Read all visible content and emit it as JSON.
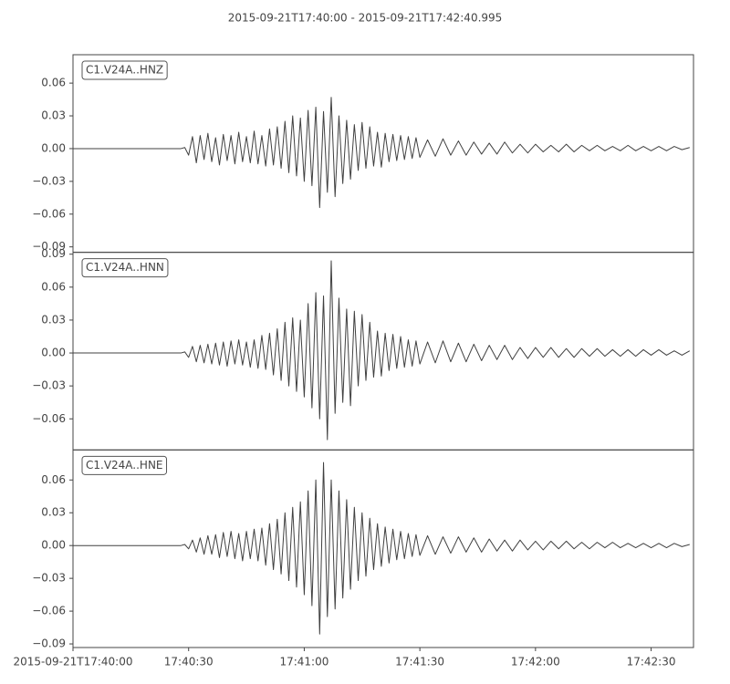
{
  "title": "2015-09-21T17:40:00  -  2015-09-21T17:42:40.995",
  "chart_data": [
    {
      "type": "line",
      "label": "C1.V24A..HNZ",
      "color": "#404040",
      "xlim": [
        0,
        160.995
      ],
      "ylim": [
        -0.095,
        0.086
      ],
      "yticks": [
        0.06,
        0.03,
        {
          "value": 0,
          "label": "0.00"
        },
        {
          "value": -0.03,
          "label": "−0.03"
        },
        {
          "value": -0.06,
          "label": "−0.06"
        },
        {
          "value": -0.09,
          "label": "−0.09"
        }
      ],
      "x": [
        0,
        28,
        29,
        30,
        31,
        32,
        33,
        34,
        35,
        36,
        37,
        38,
        39,
        40,
        41,
        42,
        43,
        44,
        45,
        46,
        47,
        48,
        49,
        50,
        51,
        52,
        53,
        54,
        55,
        56,
        57,
        58,
        59,
        60,
        61,
        62,
        63,
        64,
        65,
        66,
        67,
        68,
        69,
        70,
        71,
        72,
        73,
        74,
        75,
        76,
        77,
        78,
        79,
        80,
        81,
        82,
        83,
        84,
        85,
        86,
        87,
        88,
        89,
        90,
        92,
        94,
        96,
        98,
        100,
        102,
        104,
        106,
        108,
        110,
        112,
        114,
        116,
        118,
        120,
        122,
        124,
        126,
        128,
        130,
        132,
        134,
        136,
        138,
        140,
        142,
        144,
        146,
        148,
        150,
        152,
        154,
        156,
        158,
        160
      ],
      "values": [
        0,
        0,
        0.001,
        -0.006,
        0.011,
        -0.013,
        0.012,
        -0.01,
        0.014,
        -0.012,
        0.01,
        -0.015,
        0.013,
        -0.011,
        0.012,
        -0.014,
        0.015,
        -0.012,
        0.011,
        -0.013,
        0.016,
        -0.014,
        0.012,
        -0.016,
        0.018,
        -0.015,
        0.02,
        -0.018,
        0.025,
        -0.022,
        0.03,
        -0.025,
        0.028,
        -0.03,
        0.035,
        -0.034,
        0.038,
        -0.054,
        0.034,
        -0.04,
        0.047,
        -0.044,
        0.03,
        -0.032,
        0.026,
        -0.028,
        0.022,
        -0.02,
        0.024,
        -0.018,
        0.02,
        -0.016,
        0.015,
        -0.017,
        0.014,
        -0.012,
        0.013,
        -0.011,
        0.012,
        -0.01,
        0.011,
        -0.009,
        0.01,
        -0.008,
        0.008,
        -0.007,
        0.009,
        -0.006,
        0.007,
        -0.006,
        0.006,
        -0.005,
        0.005,
        -0.005,
        0.006,
        -0.004,
        0.004,
        -0.004,
        0.004,
        -0.003,
        0.003,
        -0.003,
        0.004,
        -0.003,
        0.003,
        -0.002,
        0.003,
        -0.002,
        0.002,
        -0.002,
        0.003,
        -0.002,
        0.002,
        -0.002,
        0.002,
        -0.002,
        0.002,
        -0.001,
        0.001
      ]
    },
    {
      "type": "line",
      "label": "C1.V24A..HNN",
      "color": "#404040",
      "xlim": [
        0,
        160.995
      ],
      "ylim": [
        -0.0883,
        0.0917
      ],
      "yticks": [
        0.09,
        0.06,
        0.03,
        {
          "value": 0,
          "label": "0.00"
        },
        {
          "value": -0.03,
          "label": "−0.03"
        },
        {
          "value": -0.06,
          "label": "−0.06"
        }
      ],
      "x": [
        0,
        28,
        29,
        30,
        31,
        32,
        33,
        34,
        35,
        36,
        37,
        38,
        39,
        40,
        41,
        42,
        43,
        44,
        45,
        46,
        47,
        48,
        49,
        50,
        51,
        52,
        53,
        54,
        55,
        56,
        57,
        58,
        59,
        60,
        61,
        62,
        63,
        64,
        65,
        66,
        67,
        68,
        69,
        70,
        71,
        72,
        73,
        74,
        75,
        76,
        77,
        78,
        79,
        80,
        81,
        82,
        83,
        84,
        85,
        86,
        87,
        88,
        89,
        90,
        92,
        94,
        96,
        98,
        100,
        102,
        104,
        106,
        108,
        110,
        112,
        114,
        116,
        118,
        120,
        122,
        124,
        126,
        128,
        130,
        132,
        134,
        136,
        138,
        140,
        142,
        144,
        146,
        148,
        150,
        152,
        154,
        156,
        158,
        160
      ],
      "values": [
        0,
        0,
        0.001,
        -0.004,
        0.006,
        -0.008,
        0.007,
        -0.009,
        0.008,
        -0.01,
        0.009,
        -0.011,
        0.01,
        -0.012,
        0.011,
        -0.01,
        0.012,
        -0.011,
        0.01,
        -0.013,
        0.012,
        -0.014,
        0.016,
        -0.015,
        0.018,
        -0.02,
        0.022,
        -0.025,
        0.028,
        -0.03,
        0.032,
        -0.035,
        0.03,
        -0.04,
        0.045,
        -0.05,
        0.055,
        -0.06,
        0.052,
        -0.079,
        0.084,
        -0.055,
        0.05,
        -0.045,
        0.04,
        -0.048,
        0.038,
        -0.03,
        0.035,
        -0.025,
        0.028,
        -0.022,
        0.02,
        -0.021,
        0.018,
        -0.016,
        0.017,
        -0.014,
        0.015,
        -0.013,
        0.012,
        -0.012,
        0.011,
        -0.01,
        0.01,
        -0.009,
        0.011,
        -0.008,
        0.009,
        -0.008,
        0.008,
        -0.007,
        0.007,
        -0.006,
        0.007,
        -0.006,
        0.005,
        -0.005,
        0.005,
        -0.004,
        0.005,
        -0.004,
        0.004,
        -0.004,
        0.004,
        -0.003,
        0.004,
        -0.003,
        0.003,
        -0.003,
        0.003,
        -0.003,
        0.003,
        -0.002,
        0.003,
        -0.002,
        0.002,
        -0.002,
        0.002
      ]
    },
    {
      "type": "line",
      "label": "C1.V24A..HNE",
      "color": "#404040",
      "xlim": [
        0,
        160.995
      ],
      "ylim": [
        -0.0933,
        0.0875
      ],
      "yticks": [
        0.06,
        0.03,
        {
          "value": 0,
          "label": "0.00"
        },
        {
          "value": -0.03,
          "label": "−0.03"
        },
        {
          "value": -0.06,
          "label": "−0.06"
        },
        {
          "value": -0.09,
          "label": "−0.09"
        }
      ],
      "xticks": [
        {
          "value": 0,
          "label": "2015-09-21T17:40:00"
        },
        {
          "value": 30,
          "label": "17:40:30"
        },
        {
          "value": 60,
          "label": "17:41:00"
        },
        {
          "value": 90,
          "label": "17:41:30"
        },
        {
          "value": 120,
          "label": "17:42:00"
        },
        {
          "value": 150,
          "label": "17:42:30"
        }
      ],
      "x": [
        0,
        28,
        29,
        30,
        31,
        32,
        33,
        34,
        35,
        36,
        37,
        38,
        39,
        40,
        41,
        42,
        43,
        44,
        45,
        46,
        47,
        48,
        49,
        50,
        51,
        52,
        53,
        54,
        55,
        56,
        57,
        58,
        59,
        60,
        61,
        62,
        63,
        64,
        65,
        66,
        67,
        68,
        69,
        70,
        71,
        72,
        73,
        74,
        75,
        76,
        77,
        78,
        79,
        80,
        81,
        82,
        83,
        84,
        85,
        86,
        87,
        88,
        89,
        90,
        92,
        94,
        96,
        98,
        100,
        102,
        104,
        106,
        108,
        110,
        112,
        114,
        116,
        118,
        120,
        122,
        124,
        126,
        128,
        130,
        132,
        134,
        136,
        138,
        140,
        142,
        144,
        146,
        148,
        150,
        152,
        154,
        156,
        158,
        160
      ],
      "values": [
        0,
        0,
        0.001,
        -0.003,
        0.005,
        -0.006,
        0.007,
        -0.008,
        0.009,
        -0.008,
        0.01,
        -0.011,
        0.012,
        -0.01,
        0.013,
        -0.012,
        0.011,
        -0.014,
        0.013,
        -0.012,
        0.015,
        -0.014,
        0.016,
        -0.018,
        0.02,
        -0.022,
        0.024,
        -0.026,
        0.03,
        -0.032,
        0.035,
        -0.038,
        0.04,
        -0.045,
        0.05,
        -0.055,
        0.06,
        -0.081,
        0.076,
        -0.065,
        0.06,
        -0.058,
        0.05,
        -0.048,
        0.042,
        -0.04,
        0.035,
        -0.032,
        0.03,
        -0.028,
        0.025,
        -0.022,
        0.02,
        -0.019,
        0.017,
        -0.016,
        0.015,
        -0.013,
        0.013,
        -0.012,
        0.011,
        -0.01,
        0.01,
        -0.009,
        0.009,
        -0.008,
        0.008,
        -0.007,
        0.008,
        -0.006,
        0.007,
        -0.006,
        0.006,
        -0.005,
        0.005,
        -0.005,
        0.005,
        -0.004,
        0.004,
        -0.004,
        0.004,
        -0.003,
        0.004,
        -0.003,
        0.003,
        -0.003,
        0.003,
        -0.002,
        0.003,
        -0.002,
        0.002,
        -0.002,
        0.002,
        -0.002,
        0.002,
        -0.002,
        0.002,
        -0.001,
        0.001
      ]
    }
  ]
}
